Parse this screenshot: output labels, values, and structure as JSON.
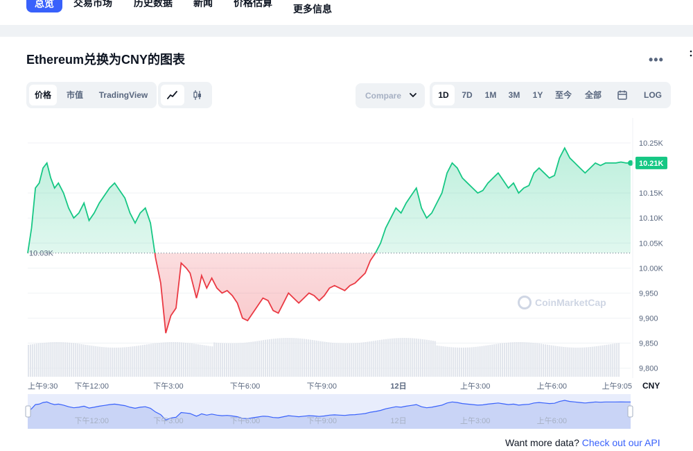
{
  "nav": {
    "tabs": [
      "总览",
      "交易市场",
      "历史数据",
      "新闻",
      "价格估算",
      "更多信息"
    ],
    "active": "总览"
  },
  "chart_title": "Ethereum兑换为CNY的图表",
  "more_menu": "•••",
  "view_tabs": {
    "price": "价格",
    "market_cap": "市值",
    "tradingview": "TradingView",
    "selected": "价格"
  },
  "chart_type_icons": {
    "line": "line-chart-icon",
    "candle": "candlestick-icon",
    "selected": "line"
  },
  "compare_label": "Compare",
  "range_tabs": [
    "1D",
    "7D",
    "1M",
    "3M",
    "1Y",
    "至今",
    "全部"
  ],
  "range_selected": "1D",
  "calendar_icon": "calendar-icon",
  "log_label": "LOG",
  "watermark": "CoinMarketCap",
  "footer": {
    "text": "Want more data? ",
    "link": "Check out our API"
  },
  "colors": {
    "up": "#16c784",
    "down": "#ea3943",
    "accent": "#3861fb",
    "volume": "#e1e5ec"
  },
  "chart_data": {
    "type": "line",
    "currency": "CNY",
    "reference_price_label": "10.03K",
    "reference_price": 10030,
    "current_price_label": "10.21K",
    "current_price": 10210,
    "y_ticks": [
      "10.25K",
      "10.15K",
      "10.10K",
      "10.05K",
      "10.00K",
      "9,950",
      "9,900",
      "9,850",
      "9,800"
    ],
    "y_tick_values": [
      10250,
      10150,
      10100,
      10050,
      10000,
      9950,
      9900,
      9850,
      9800
    ],
    "ylim": [
      9780,
      10300
    ],
    "x_tick_labels": [
      "上午9:30",
      "下午12:00",
      "下午3:00",
      "下午6:00",
      "下午9:00",
      "12日",
      "上午3:00",
      "上午6:00",
      "上午9:05"
    ],
    "x_tick_hours": [
      0,
      2.5,
      5.5,
      8.5,
      11.5,
      14.5,
      17.5,
      20.5,
      23.58
    ],
    "x_range_hours": [
      0,
      23.58
    ],
    "navigator_labels": [
      "下午12:00",
      "下午3:00",
      "下午6:00",
      "下午9:00",
      "12日",
      "上午3:00",
      "上午6:00"
    ],
    "navigator_hours": [
      2.5,
      5.5,
      8.5,
      11.5,
      14.5,
      17.5,
      20.5
    ],
    "series": [
      {
        "x_hours": [
          0,
          0.15,
          0.3,
          0.45,
          0.6,
          0.75,
          0.9,
          1.05,
          1.2,
          1.4,
          1.6,
          1.8,
          2.0,
          2.2,
          2.4,
          2.6,
          2.8,
          3.0,
          3.2,
          3.4,
          3.6,
          3.8,
          4.0,
          4.2,
          4.4,
          4.6,
          4.8,
          5.0,
          5.2,
          5.4,
          5.6,
          5.8,
          6.0,
          6.2,
          6.35,
          6.5,
          6.6,
          6.7,
          6.8,
          7.0,
          7.2,
          7.4,
          7.6,
          7.8,
          8.0,
          8.2,
          8.4,
          8.6,
          8.8,
          9.0,
          9.2,
          9.4,
          9.6,
          9.8,
          10.0,
          10.2,
          10.4,
          10.6,
          10.8,
          11.0,
          11.2,
          11.4,
          11.6,
          11.8,
          12.0,
          12.2,
          12.4,
          12.6,
          12.8,
          13.0,
          13.2,
          13.4,
          13.6,
          13.8,
          14.0,
          14.2,
          14.4,
          14.6,
          14.8,
          15.0,
          15.2,
          15.4,
          15.6,
          15.8,
          16.0,
          16.2,
          16.4,
          16.6,
          16.8,
          17.0,
          17.2,
          17.4,
          17.6,
          17.8,
          18.0,
          18.2,
          18.4,
          18.6,
          18.8,
          19.0,
          19.2,
          19.4,
          19.6,
          19.8,
          20.0,
          20.2,
          20.4,
          20.6,
          20.8,
          21.0,
          21.2,
          21.4,
          21.6,
          21.8,
          22.0,
          22.2,
          22.4,
          22.6,
          22.8,
          23.0,
          23.2,
          23.4,
          23.58
        ],
        "price": [
          10030,
          10080,
          10160,
          10170,
          10200,
          10210,
          10180,
          10160,
          10170,
          10150,
          10120,
          10100,
          10110,
          10130,
          10095,
          10110,
          10130,
          10145,
          10160,
          10170,
          10155,
          10140,
          10110,
          10090,
          10110,
          10120,
          10090,
          10020,
          9970,
          9870,
          9905,
          9920,
          10010,
          10000,
          9990,
          9960,
          9940,
          9960,
          9985,
          9960,
          9980,
          9960,
          9950,
          9955,
          9945,
          9930,
          9900,
          9895,
          9910,
          9925,
          9940,
          9935,
          9915,
          9910,
          9930,
          9950,
          9940,
          9930,
          9940,
          9950,
          9945,
          9935,
          9945,
          9960,
          9965,
          9960,
          9955,
          9965,
          9970,
          9980,
          9990,
          10015,
          10030,
          10050,
          10080,
          10100,
          10120,
          10110,
          10130,
          10145,
          10160,
          10120,
          10100,
          10110,
          10130,
          10150,
          10190,
          10210,
          10200,
          10180,
          10170,
          10160,
          10150,
          10155,
          10170,
          10180,
          10190,
          10175,
          10160,
          10170,
          10150,
          10160,
          10165,
          10190,
          10200,
          10190,
          10180,
          10185,
          10220,
          10240,
          10220,
          10210,
          10200,
          10190,
          10200,
          10210,
          10205,
          10210,
          10210,
          10210,
          10212,
          10210,
          10210
        ]
      }
    ],
    "volume": "uniform bars across the period",
    "grid": true
  }
}
